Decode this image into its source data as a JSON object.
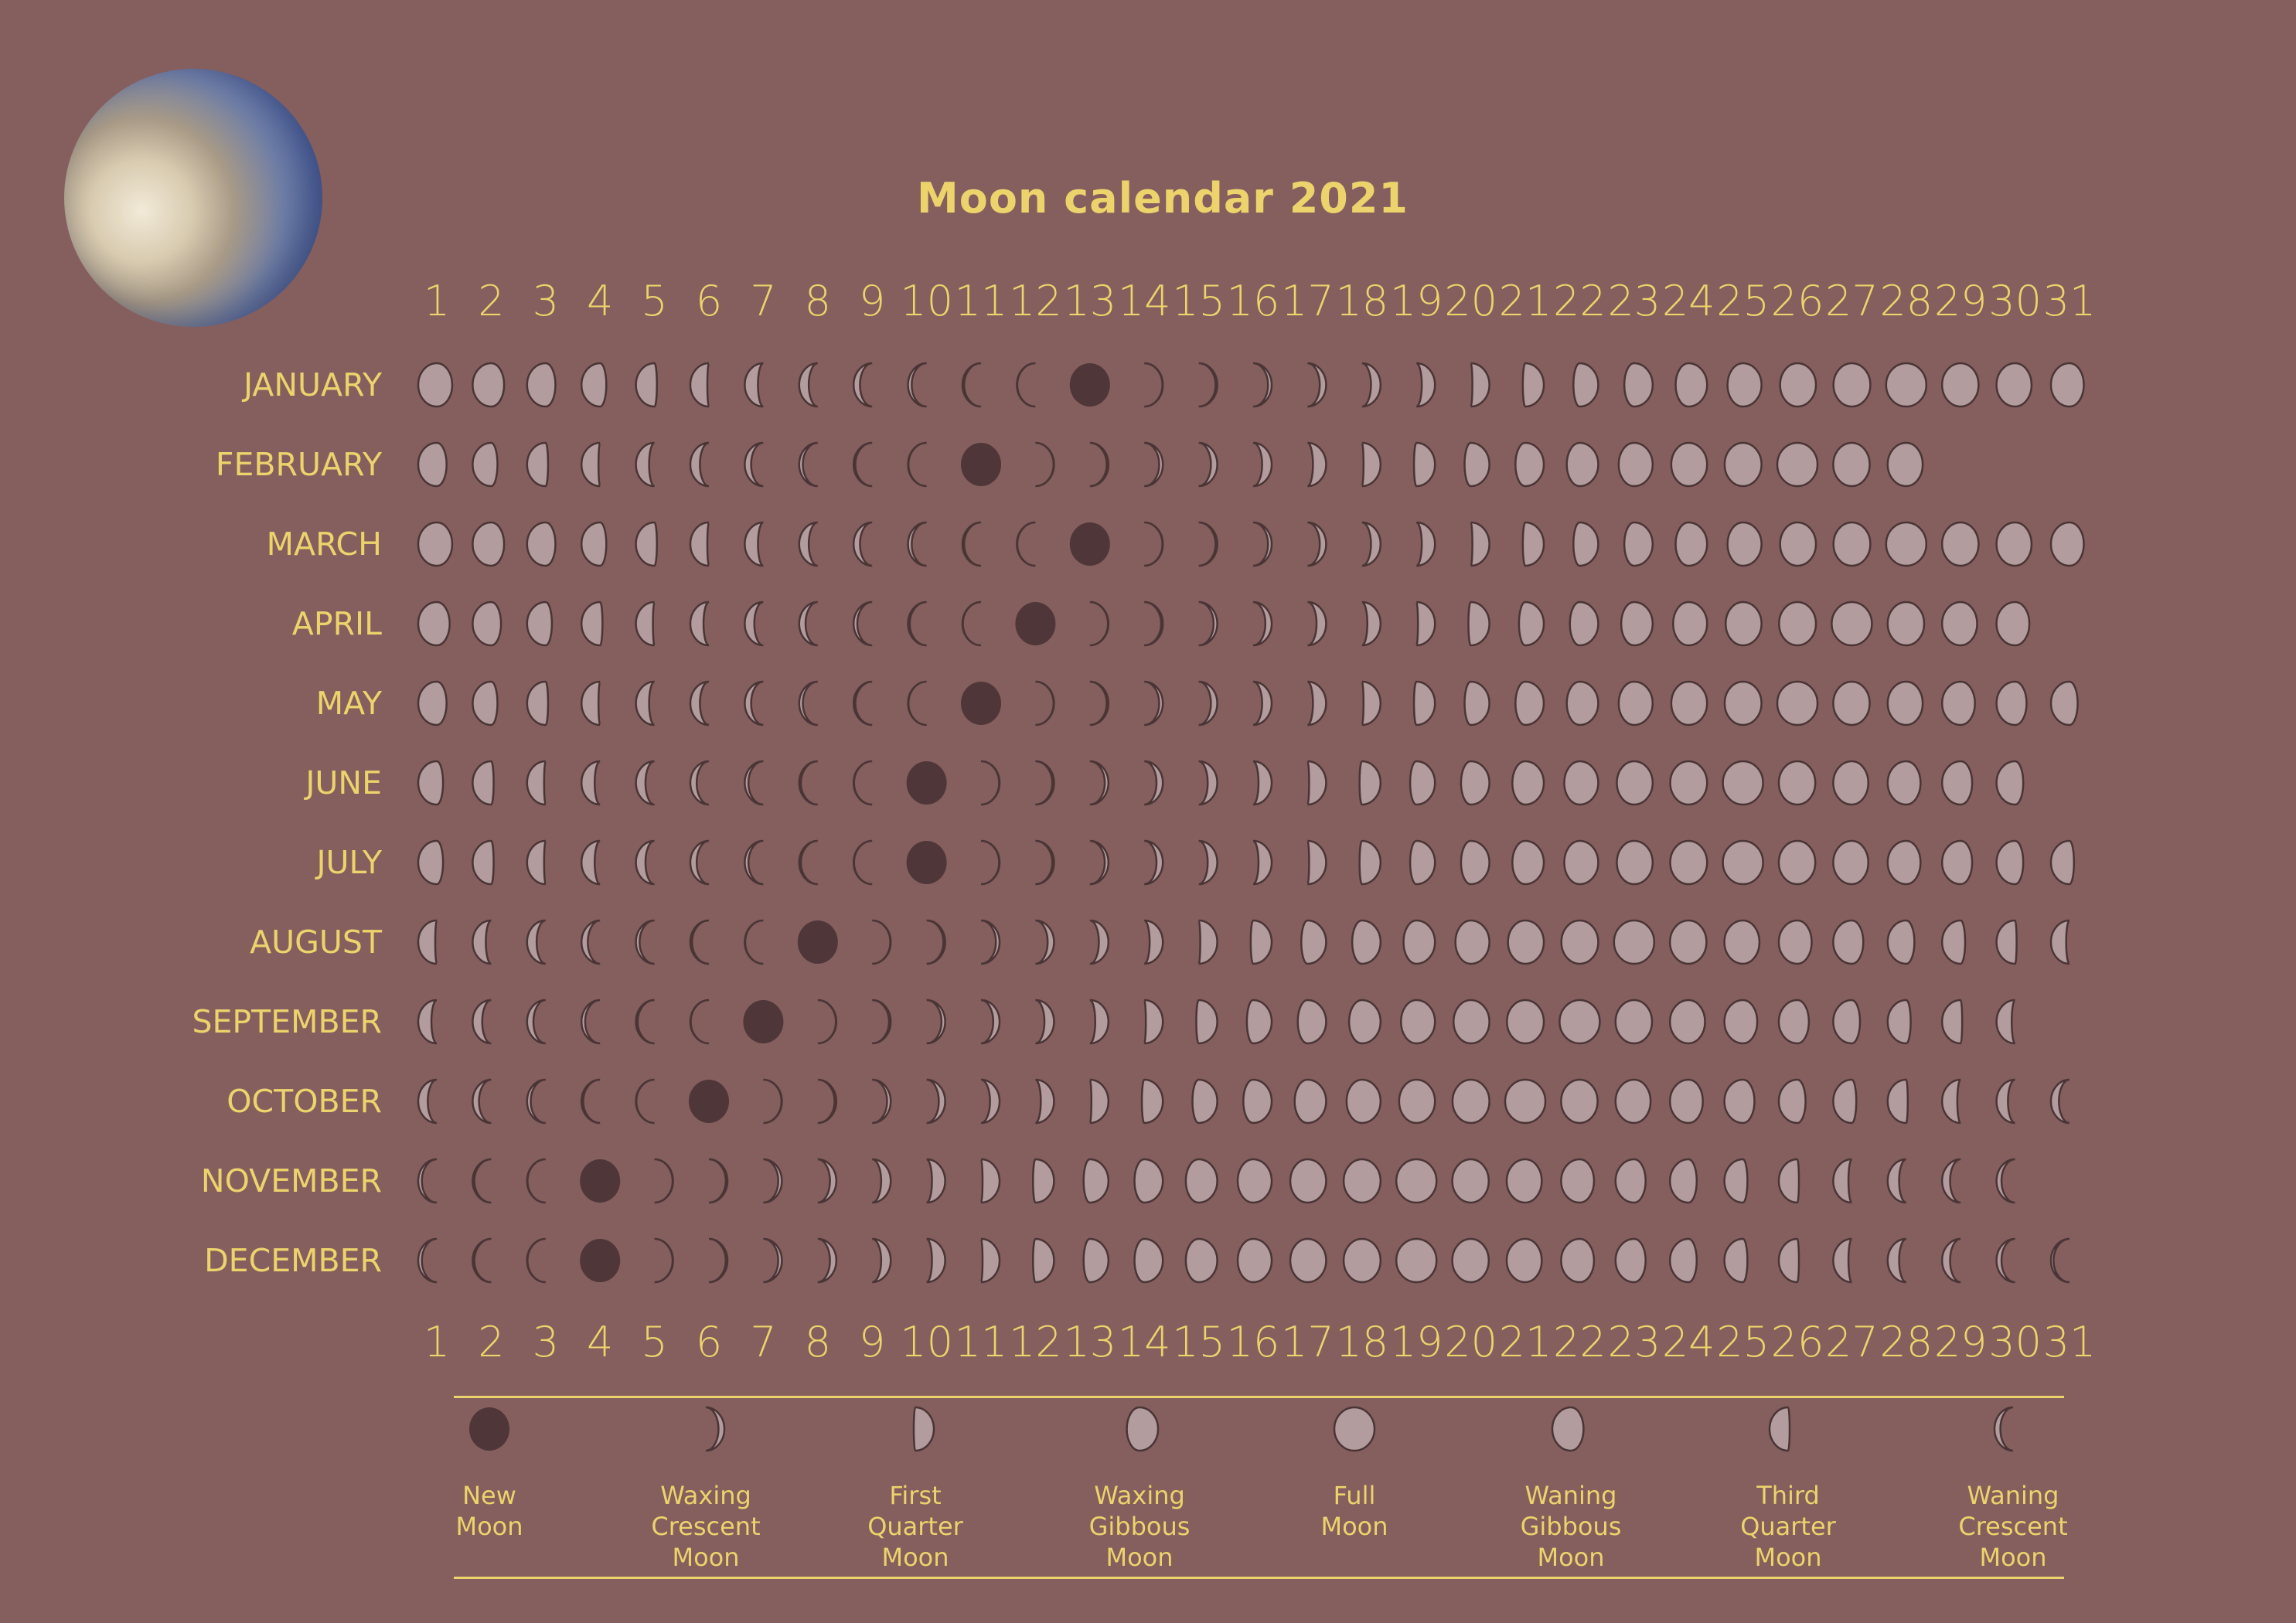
{
  "title": "Moon calendar 2021",
  "colors": {
    "background": "#855e5e",
    "text": "#ecd36b",
    "moon_lit": "#b39c9e",
    "moon_new": "#4e3639",
    "outline": "#4a3536"
  },
  "days": [
    1,
    2,
    3,
    4,
    5,
    6,
    7,
    8,
    9,
    10,
    11,
    12,
    13,
    14,
    15,
    16,
    17,
    18,
    19,
    20,
    21,
    22,
    23,
    24,
    25,
    26,
    27,
    28,
    29,
    30,
    31
  ],
  "lunar_cycle_days": 29.53,
  "months": [
    {
      "name": "JANUARY",
      "days": 31,
      "new_moon_day": 13
    },
    {
      "name": "FEBRUARY",
      "days": 28,
      "new_moon_day": 11
    },
    {
      "name": "MARCH",
      "days": 31,
      "new_moon_day": 13
    },
    {
      "name": "APRIL",
      "days": 30,
      "new_moon_day": 12
    },
    {
      "name": "MAY",
      "days": 31,
      "new_moon_day": 11
    },
    {
      "name": "JUNE",
      "days": 30,
      "new_moon_day": 10
    },
    {
      "name": "JULY",
      "days": 31,
      "new_moon_day": 10
    },
    {
      "name": "AUGUST",
      "days": 31,
      "new_moon_day": 8
    },
    {
      "name": "SEPTEMBER",
      "days": 30,
      "new_moon_day": 7
    },
    {
      "name": "OCTOBER",
      "days": 31,
      "new_moon_day": 6
    },
    {
      "name": "NOVEMBER",
      "days": 30,
      "new_moon_day": 4
    },
    {
      "name": "DECEMBER",
      "days": 31,
      "new_moon_day": 4
    }
  ],
  "legend": [
    {
      "lines": [
        "New",
        "Moon"
      ],
      "phase": 0
    },
    {
      "lines": [
        "Waxing",
        "Crescent",
        "Moon"
      ],
      "phase": 0.13
    },
    {
      "lines": [
        "First",
        "Quarter",
        "Moon"
      ],
      "phase": 0.25
    },
    {
      "lines": [
        "Waxing",
        "Gibbous",
        "Moon"
      ],
      "phase": 0.37
    },
    {
      "lines": [
        "Full",
        "Moon"
      ],
      "phase": 0.5
    },
    {
      "lines": [
        "Waning",
        "Gibbous",
        "Moon"
      ],
      "phase": 0.63
    },
    {
      "lines": [
        "Third",
        "Quarter",
        "Moon"
      ],
      "phase": 0.75
    },
    {
      "lines": [
        "Waning",
        "Crescent",
        "Moon"
      ],
      "phase": 0.87
    }
  ]
}
